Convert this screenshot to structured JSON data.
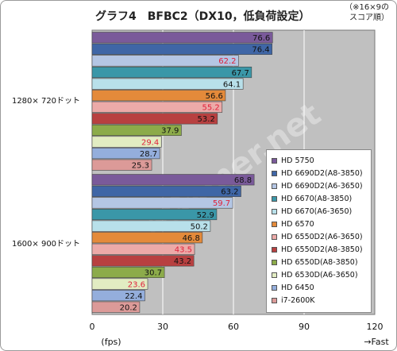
{
  "title": "グラフ4　BFBC2（DX10，低負荷設定）",
  "note_lines": [
    "（※16×9の",
    "スコア順）"
  ],
  "chart_data": {
    "type": "bar",
    "orientation": "horizontal",
    "title": "グラフ4　BFBC2（DX10，低負荷設定）",
    "xlabel": "(fps)",
    "x_tick_labels": [
      "0",
      "30",
      "60",
      "90",
      "120"
    ],
    "xlim": [
      0,
      120
    ],
    "x_axis_direction_label": "→Fast",
    "grid": true,
    "legend_position": "right",
    "categories": [
      "1280× 720ドット",
      "1600× 900ドット"
    ],
    "series": [
      {
        "name": "HD 5750",
        "color": "#7a5a9a",
        "values": [
          76.6,
          68.8
        ]
      },
      {
        "name": "HD 6690D2(A8-3850)",
        "color": "#3f66a6",
        "values": [
          76.4,
          63.2
        ]
      },
      {
        "name": "HD 6690D2(A6-3650)",
        "color": "#b4c6e4",
        "values": [
          62.2,
          59.7
        ]
      },
      {
        "name": "HD 6670(A8-3850)",
        "color": "#3a97a8",
        "values": [
          67.7,
          52.9
        ]
      },
      {
        "name": "HD 6670(A6-3650)",
        "color": "#b8e0ea",
        "values": [
          64.1,
          50.2
        ]
      },
      {
        "name": "HD 6570",
        "color": "#e48a3a",
        "values": [
          56.6,
          46.8
        ]
      },
      {
        "name": "HD 6550D2(A6-3650)",
        "color": "#ecaaa8",
        "values": [
          55.2,
          43.5
        ]
      },
      {
        "name": "HD 6550D2(A8-3850)",
        "color": "#b84040",
        "values": [
          53.2,
          43.2
        ]
      },
      {
        "name": "HD 6550D(A8-3850)",
        "color": "#8cab4a",
        "values": [
          37.9,
          30.7
        ]
      },
      {
        "name": "HD 6530D(A6-3650)",
        "color": "#e2ecc2",
        "values": [
          29.4,
          23.6
        ]
      },
      {
        "name": "HD 6450",
        "color": "#94aedc",
        "values": [
          28.7,
          22.4
        ]
      },
      {
        "name": "i7-2600K",
        "color": "#dc9a98",
        "values": [
          25.3,
          20.2
        ]
      }
    ],
    "label_colors": {
      "normal": "#111111",
      "highlight": "#e0203a"
    },
    "highlighted_series": [
      "HD 6690D2(A6-3650)",
      "HD 6550D2(A6-3650)",
      "HD 6530D(A6-3650)"
    ],
    "colors": {
      "plot_background": "#c0c0c0",
      "gridline": "#ffffff"
    },
    "watermark": "4Gamer.net"
  }
}
